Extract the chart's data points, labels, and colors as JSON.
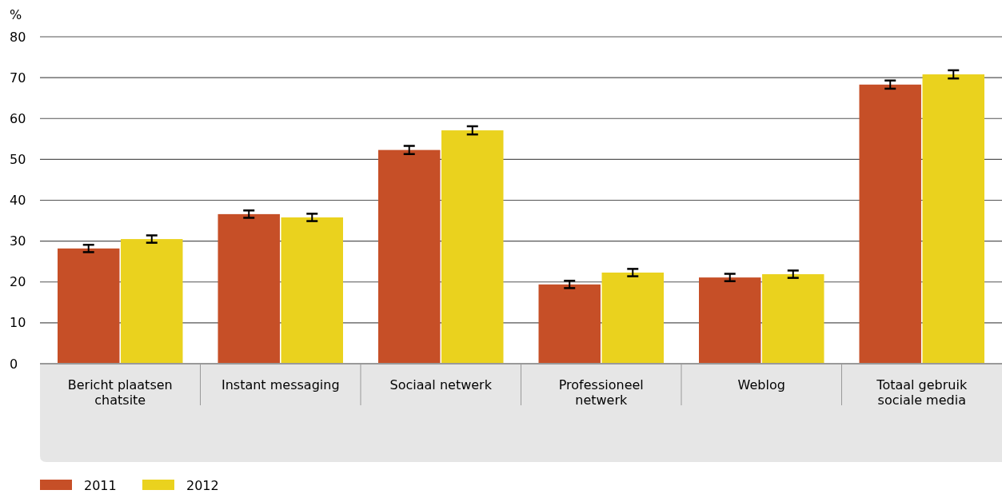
{
  "chart_data": {
    "type": "bar",
    "ylabel": "%",
    "categories": [
      "Bericht plaatsen chatsite",
      "Instant messaging",
      "Sociaal netwerk",
      "Professioneel netwerk",
      "Weblog",
      "Totaal gebruik sociale media"
    ],
    "series": [
      {
        "name": "2011",
        "color": "#c64f27",
        "values": [
          28.2,
          36.6,
          52.3,
          19.4,
          21.1,
          68.3
        ],
        "errors": [
          0.9,
          0.9,
          1.0,
          0.9,
          0.9,
          1.0
        ]
      },
      {
        "name": "2012",
        "color": "#ead21e",
        "values": [
          30.5,
          35.8,
          57.1,
          22.3,
          21.9,
          70.8
        ],
        "errors": [
          0.9,
          0.9,
          1.0,
          0.9,
          0.9,
          1.0
        ]
      }
    ],
    "ylim": [
      0,
      80
    ],
    "yticks": [
      0,
      10,
      20,
      30,
      40,
      50,
      60,
      70,
      80
    ],
    "grid": "y",
    "legend": "bottom left"
  }
}
